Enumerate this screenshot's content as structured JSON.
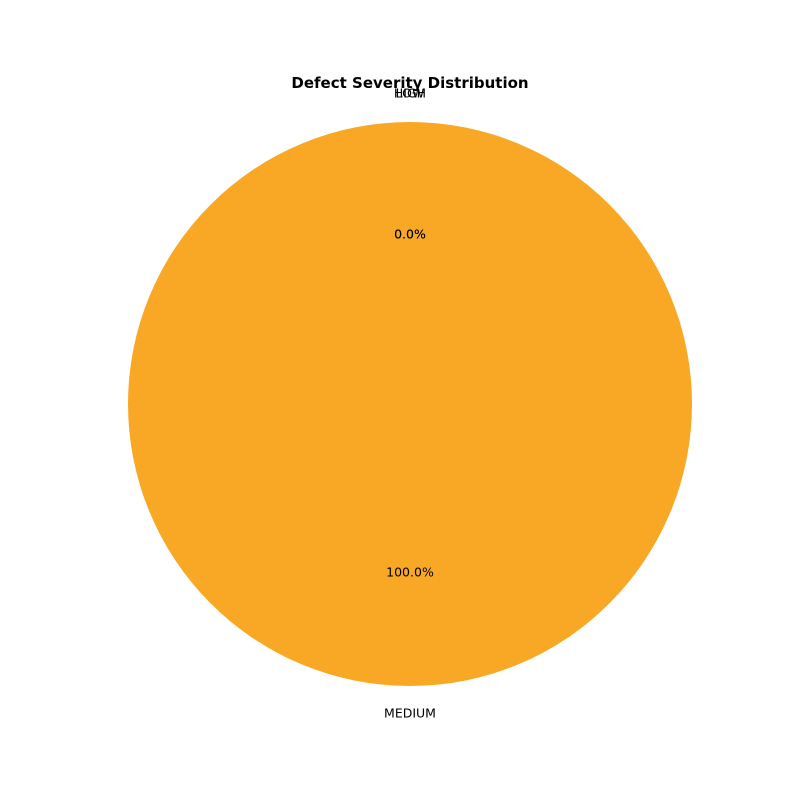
{
  "chart_data": {
    "type": "pie",
    "title": "Defect Severity Distribution",
    "slices": [
      {
        "label": "HIGH",
        "value": 0.0,
        "pct_label": "0.0%",
        "color": "#2ca02c"
      },
      {
        "label": "LOW",
        "value": 0.0,
        "pct_label": "0.0%",
        "color": "#1f77b4"
      },
      {
        "label": "MEDIUM",
        "value": 100.0,
        "pct_label": "100.0%",
        "color": "#f9a825"
      }
    ],
    "start_angle_deg": 90,
    "counterclock": true
  }
}
